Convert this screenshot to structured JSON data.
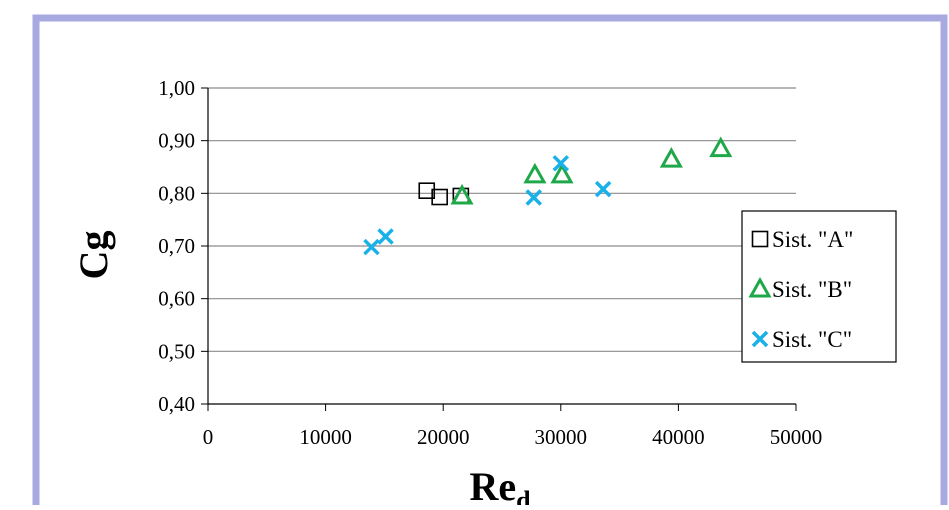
{
  "colors": {
    "frame_border": "#a7a9e0",
    "series_a": "#000000",
    "series_b": "#1fa84a",
    "series_c": "#1ab0e8",
    "grid": "#8c8c8c"
  },
  "chart_data": {
    "type": "scatter",
    "title": "",
    "xlabel_main": "Re",
    "xlabel_sub": "d",
    "ylabel": "Cg",
    "xlim": [
      0,
      50000
    ],
    "ylim": [
      0.4,
      1.0
    ],
    "x_ticks": [
      {
        "value": 0,
        "label": "0"
      },
      {
        "value": 10000,
        "label": "10000"
      },
      {
        "value": 20000,
        "label": "20000"
      },
      {
        "value": 30000,
        "label": "30000"
      },
      {
        "value": 40000,
        "label": "40000"
      },
      {
        "value": 50000,
        "label": "50000"
      }
    ],
    "y_ticks": [
      {
        "value": 0.4,
        "label": "0,40"
      },
      {
        "value": 0.5,
        "label": "0,50"
      },
      {
        "value": 0.6,
        "label": "0,60"
      },
      {
        "value": 0.7,
        "label": "0,70"
      },
      {
        "value": 0.8,
        "label": "0,80"
      },
      {
        "value": 0.9,
        "label": "0,90"
      },
      {
        "value": 1.0,
        "label": "1,00"
      }
    ],
    "grid": true,
    "legend_position": "right",
    "series": [
      {
        "name": "Sist. \"A\"",
        "marker": "square",
        "points": [
          {
            "x": 18600,
            "y": 0.805
          },
          {
            "x": 19700,
            "y": 0.793
          },
          {
            "x": 21500,
            "y": 0.795
          }
        ]
      },
      {
        "name": "Sist. \"B\"",
        "marker": "triangle",
        "points": [
          {
            "x": 21600,
            "y": 0.795
          },
          {
            "x": 27800,
            "y": 0.835
          },
          {
            "x": 30100,
            "y": 0.835
          },
          {
            "x": 39400,
            "y": 0.865
          },
          {
            "x": 43600,
            "y": 0.885
          }
        ]
      },
      {
        "name": "Sist. \"C\"",
        "marker": "x",
        "points": [
          {
            "x": 13900,
            "y": 0.698
          },
          {
            "x": 15100,
            "y": 0.718
          },
          {
            "x": 27700,
            "y": 0.792
          },
          {
            "x": 30000,
            "y": 0.857
          },
          {
            "x": 33600,
            "y": 0.808
          }
        ]
      }
    ]
  }
}
